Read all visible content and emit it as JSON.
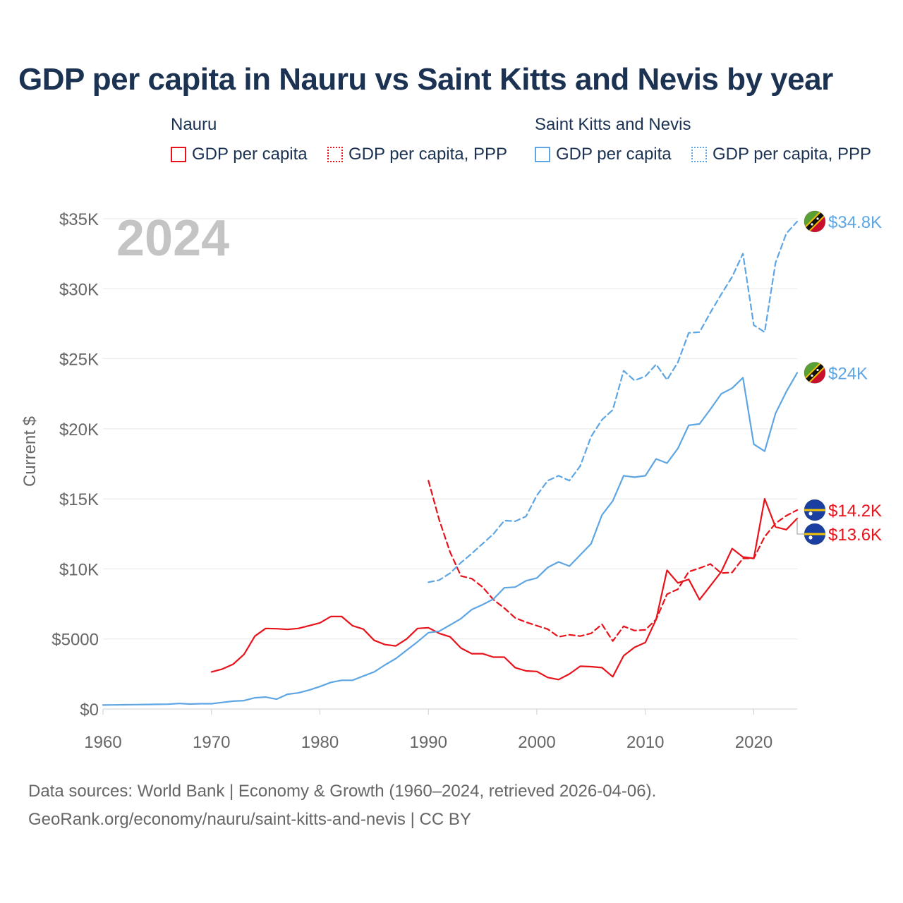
{
  "title": "GDP per capita in Nauru vs Saint Kitts and Nevis by year",
  "legend": {
    "groups": [
      {
        "name": "Nauru",
        "items": [
          "GDP per capita",
          "GDP per capita, PPP"
        ]
      },
      {
        "name": "Saint Kitts and Nevis",
        "items": [
          "GDP per capita",
          "GDP per capita, PPP"
        ]
      }
    ]
  },
  "year_overlay": "2024",
  "footer": {
    "line1": "Data sources: World Bank | Economy & Growth (1960–2024, retrieved 2026-04-06).",
    "line2": "GeoRank.org/economy/nauru/saint-kitts-and-nevis | CC BY"
  },
  "colors": {
    "nauru": "#e8121b",
    "skn": "#5ea5e3",
    "title": "#1b3252",
    "grid": "#e6e6e6",
    "axis_text": "#666666"
  },
  "chart_data": {
    "type": "line",
    "title": "GDP per capita in Nauru vs Saint Kitts and Nevis by year",
    "xlabel": "",
    "ylabel": "Current $",
    "xlim": [
      1960,
      2024
    ],
    "ylim": [
      0,
      35000
    ],
    "x_ticks": [
      1960,
      1970,
      1980,
      1990,
      2000,
      2010,
      2020
    ],
    "x_tick_labels": [
      "1960",
      "1970",
      "1980",
      "1990",
      "2000",
      "2010",
      "2020"
    ],
    "y_ticks": [
      0,
      5000,
      10000,
      15000,
      20000,
      25000,
      30000,
      35000
    ],
    "y_tick_labels": [
      "$0",
      "$5000",
      "$10K",
      "$15K",
      "$20K",
      "$25K",
      "$30K",
      "$35K"
    ],
    "grid": true,
    "series": [
      {
        "name": "Nauru GDP per capita",
        "country": "Nauru",
        "style": "solid",
        "color": "#e8121b",
        "start_year": 1970,
        "values": [
          2650,
          2850,
          3200,
          3900,
          5200,
          5750,
          5730,
          5680,
          5750,
          5950,
          6150,
          6600,
          6600,
          5950,
          5700,
          4900,
          4600,
          4500,
          5000,
          5750,
          5800,
          5400,
          5150,
          4350,
          3950,
          3950,
          3700,
          3700,
          2950,
          2720,
          2680,
          2250,
          2100,
          2500,
          3050,
          3020,
          2950,
          2300,
          3800,
          4400,
          4750,
          6400,
          9900,
          9000,
          9250,
          7800,
          8800,
          9800,
          11450,
          10850,
          10750,
          15000,
          13000,
          12800,
          13600
        ],
        "end_label": "$13.6K"
      },
      {
        "name": "Nauru GDP per capita, PPP",
        "country": "Nauru",
        "style": "dashed",
        "color": "#e8121b",
        "start_year": 1990,
        "values": [
          16300,
          13500,
          11200,
          9500,
          9300,
          8700,
          7800,
          7200,
          6500,
          6200,
          5950,
          5700,
          5150,
          5300,
          5200,
          5400,
          6050,
          4850,
          5900,
          5600,
          5650,
          6400,
          8200,
          8550,
          9800,
          10050,
          10350,
          9700,
          9750,
          10750,
          10750,
          12300,
          13250,
          13800,
          14200
        ],
        "end_label": "$14.2K"
      },
      {
        "name": "Saint Kitts and Nevis GDP per capita",
        "country": "Saint Kitts and Nevis",
        "style": "solid",
        "color": "#5ea5e3",
        "start_year": 1960,
        "values": [
          280,
          290,
          300,
          310,
          320,
          330,
          340,
          400,
          350,
          380,
          380,
          470,
          560,
          600,
          800,
          850,
          700,
          1050,
          1150,
          1350,
          1600,
          1900,
          2050,
          2050,
          2350,
          2650,
          3150,
          3600,
          4200,
          4800,
          5450,
          5550,
          6000,
          6450,
          7100,
          7450,
          7850,
          8650,
          8700,
          9150,
          9350,
          10100,
          10500,
          10200,
          11000,
          11800,
          13850,
          14850,
          16650,
          16550,
          16650,
          17850,
          17550,
          18600,
          20250,
          20350,
          21400,
          22500,
          22900,
          23650,
          18900,
          18400,
          21100,
          22650,
          24000
        ],
        "end_label": "$24K"
      },
      {
        "name": "Saint Kitts and Nevis GDP per capita, PPP",
        "country": "Saint Kitts and Nevis",
        "style": "dashed",
        "color": "#5ea5e3",
        "start_year": 1990,
        "values": [
          9050,
          9200,
          9700,
          10450,
          11100,
          11800,
          12500,
          13450,
          13400,
          13750,
          15250,
          16300,
          16650,
          16300,
          17350,
          19450,
          20650,
          21350,
          24150,
          23450,
          23750,
          24600,
          23500,
          24750,
          26850,
          26900,
          28300,
          29600,
          30850,
          32500,
          27400,
          26900,
          31850,
          33950,
          34800
        ],
        "end_label": "$34.8K"
      }
    ]
  }
}
